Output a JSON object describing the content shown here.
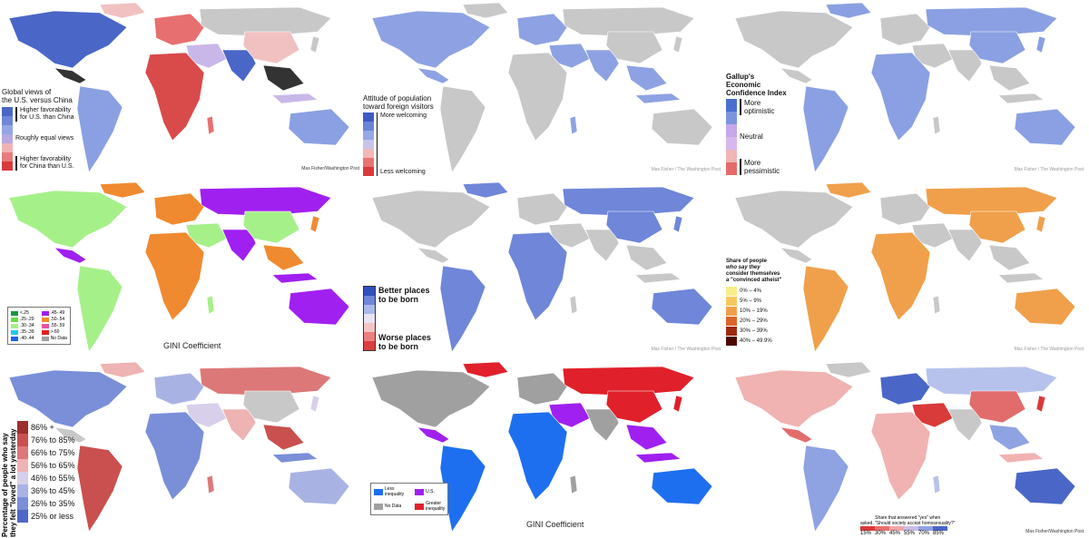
{
  "panels": [
    {
      "title_lines": [
        "Global views of",
        "the U.S. versus China"
      ],
      "legend": [
        {
          "label": "Higher favorability\nfor U.S. than China",
          "colors": [
            "#4a66c7",
            "#6f86d9",
            "#93a6e6"
          ]
        },
        {
          "label": "Roughly equal views",
          "colors": [
            "#b7a8e0"
          ]
        },
        {
          "label": "Higher favorability\nfor China than U.S.",
          "colors": [
            "#f0b3b3",
            "#e97b7b",
            "#d93a3a"
          ]
        }
      ],
      "credit": "Max Fisher/Washington Post",
      "palette": [
        "#4a66c7",
        "#8aa0e2",
        "#c8b7e8",
        "#f1c1c1",
        "#e86f6f",
        "#d94a4a",
        "#333333",
        "#c8c8c8"
      ]
    },
    {
      "title_lines": [
        "Attitude of population",
        "toward foreign visitors"
      ],
      "labels": {
        "top": "More welcoming",
        "bottom": "Less welcoming"
      },
      "colors": [
        "#3f5bc4",
        "#6c84d6",
        "#97a8e6",
        "#c7c3ea",
        "#f2b7b7",
        "#e97474",
        "#d93a3a"
      ],
      "credit": "Max Fisher / The Washington Post",
      "palette": [
        "#3f5bc4",
        "#8ea2e3",
        "#e8625f",
        "#f0a0a0",
        "#c8c8c8",
        "#d9d0f0"
      ]
    },
    {
      "title_lines": [
        "Gallup's",
        "Economic",
        "Confidence Index"
      ],
      "labels": {
        "top": "More\noptimistic",
        "mid": "Neutral",
        "bottom": "More\npessimistic"
      },
      "colors": [
        "#4a6fcf",
        "#7d95dc",
        "#c6a9e8",
        "#d8b7ee",
        "#f0b5b5",
        "#e56b6b"
      ],
      "credit": "Max Fisher / The Washington Post",
      "palette": [
        "#b9a7ea",
        "#4a6fcf",
        "#c8c8c8",
        "#e56b6b",
        "#f0b5b5",
        "#8aa0e2"
      ]
    },
    {
      "caption": "GINI Coefficient",
      "legend_items": [
        {
          "label": "<.25",
          "color": "#1a9641"
        },
        {
          "label": ".45-.49",
          "color": "#a020f0"
        },
        {
          "label": ".25-.29",
          "color": "#66dd44"
        },
        {
          "label": ".50-.54",
          "color": "#f08a30"
        },
        {
          "label": ".30-.34",
          "color": "#a6f08a"
        },
        {
          "label": ".55-.59",
          "color": "#e8549c"
        },
        {
          "label": ".35-.39",
          "color": "#22c8ee"
        },
        {
          "label": ">.60",
          "color": "#e02020"
        },
        {
          "label": ".40-.44",
          "color": "#1e64e6"
        },
        {
          "label": "No Data",
          "color": "#a0a0a0"
        }
      ],
      "palette": [
        "#a020f0",
        "#1e64e6",
        "#22c8ee",
        "#a6f08a",
        "#66dd44",
        "#e02020",
        "#f08a30",
        "#e8549c",
        "#a0a0a0"
      ]
    },
    {
      "labels": {
        "top": "Better places\nto be born",
        "bottom": "Worse places\nto be born"
      },
      "colors": [
        "#2f4fbf",
        "#6f86d9",
        "#aab8ea",
        "#e8e4f2",
        "#f4c4c4",
        "#ec7f7f",
        "#dc3f3f"
      ],
      "credit": "Max Fisher / The Washington Post",
      "palette": [
        "#3553c4",
        "#6f86d9",
        "#e85c5c",
        "#f3aaaa",
        "#c8c8c8",
        "#d8d5ee"
      ]
    },
    {
      "title_lines": [
        "Share of people",
        "who say they",
        "consider themselves",
        "a \"convinced atheist\""
      ],
      "legend": [
        {
          "label": "0% – 4%",
          "color": "#f7ee8a"
        },
        {
          "label": "5% – 9%",
          "color": "#f6c85f"
        },
        {
          "label": "10% – 19%",
          "color": "#f0a04b"
        },
        {
          "label": "20% – 29%",
          "color": "#d9652a"
        },
        {
          "label": "30% – 39%",
          "color": "#9e2a10"
        },
        {
          "label": "40% – 49.9%",
          "color": "#4a0a00"
        }
      ],
      "credit": "Max Fisher / The Washington Post",
      "palette": [
        "#f6c85f",
        "#f7ee8a",
        "#f0a04b",
        "#d9652a",
        "#4a0a00",
        "#c8c8c8"
      ]
    },
    {
      "title_lines": [
        "Percentage of people who say",
        "they felt \"loved\" a lot yesterday"
      ],
      "legend": [
        {
          "label": "86% +",
          "color": "#9c2f2f"
        },
        {
          "label": "76% to 85%",
          "color": "#c9504f"
        },
        {
          "label": "66% to 75%",
          "color": "#dd7878"
        },
        {
          "label": "56% to 65%",
          "color": "#eeb3b3"
        },
        {
          "label": "46% to 55%",
          "color": "#d8cfea"
        },
        {
          "label": "36% to 45%",
          "color": "#a9b3e3"
        },
        {
          "label": "26% to 35%",
          "color": "#7a8fd8"
        },
        {
          "label": "25% or less",
          "color": "#4f67c8"
        }
      ],
      "palette": [
        "#dd7878",
        "#c9504f",
        "#eeb3b3",
        "#d8cfea",
        "#a9b3e3",
        "#c8c8c8",
        "#7a8fd8"
      ]
    },
    {
      "caption": "GINI Coefficient",
      "legend_items": [
        {
          "label": "Less\ninequality",
          "color": "#1e6ff0"
        },
        {
          "label": "U.S.",
          "color": "#a020f0"
        },
        {
          "label": "No Data",
          "color": "#a0a0a0"
        },
        {
          "label": "Greater\ninequality",
          "color": "#e0202a"
        }
      ],
      "palette": [
        "#1e6ff0",
        "#a020f0",
        "#e0202a",
        "#a0a0a0"
      ]
    },
    {
      "scale_title": "Share that  answered \"yes\" when\nasked, \"Should society accept homosexuality?\"",
      "scale": [
        {
          "label": "15%",
          "color": "#d93a3a"
        },
        {
          "label": "30%",
          "color": "#e96f6f"
        },
        {
          "label": "45%",
          "color": "#f1a7a7"
        },
        {
          "label": "55%",
          "color": "#c9bde6"
        },
        {
          "label": "70%",
          "color": "#8fa2e2"
        },
        {
          "label": "85%",
          "color": "#4a66c7"
        }
      ],
      "credit": "Max Fisher/Washington Post",
      "palette": [
        "#e26c6c",
        "#f1b2b2",
        "#b7c2ec",
        "#8fa2e2",
        "#c8c8c8",
        "#d93a3a",
        "#4a66c7"
      ]
    }
  ]
}
